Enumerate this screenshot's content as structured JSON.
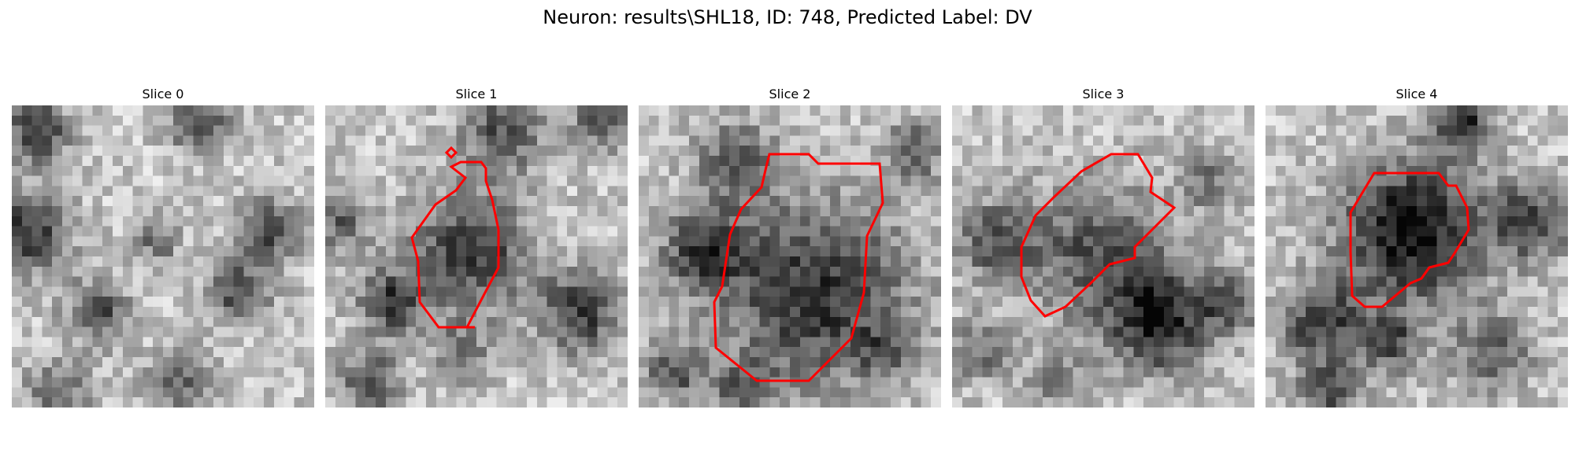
{
  "figure": {
    "title": "Neuron: results\\SHL18, ID: 748, Predicted Label: DV",
    "contour_color": "#ff0000",
    "colormap": "grayscale",
    "grid_size": 30
  },
  "slices": [
    {
      "label": "Slice 0",
      "has_contour": false
    },
    {
      "label": "Slice 1",
      "has_contour": true
    },
    {
      "label": "Slice 2",
      "has_contour": true
    },
    {
      "label": "Slice 3",
      "has_contour": true
    },
    {
      "label": "Slice 4",
      "has_contour": true
    }
  ]
}
